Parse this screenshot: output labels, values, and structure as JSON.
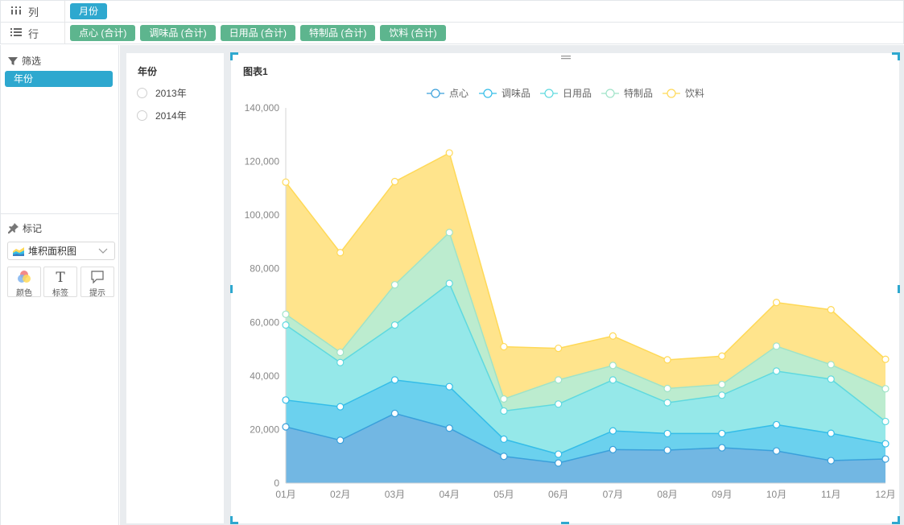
{
  "shelves": {
    "columns": {
      "label": "列",
      "pills": [
        "月份"
      ]
    },
    "rows": {
      "label": "行",
      "pills": [
        "点心 (合计)",
        "调味品 (合计)",
        "日用品 (合计)",
        "特制品 (合计)",
        "饮料 (合计)"
      ]
    }
  },
  "filter": {
    "title": "筛选",
    "pill": "年份"
  },
  "marks": {
    "title": "标记",
    "chart_type": "堆积面积图",
    "buttons": {
      "color": "颜色",
      "label": "标签",
      "tooltip": "提示"
    }
  },
  "year_filter": {
    "title": "年份",
    "options": [
      "2013年",
      "2014年"
    ]
  },
  "chart": {
    "title": "图表1"
  },
  "colors": {
    "accent": "#2ea8cf",
    "pill_green": "#5db58e"
  },
  "chart_data": {
    "type": "area",
    "stacked": true,
    "categories": [
      "01月",
      "02月",
      "03月",
      "04月",
      "05月",
      "06月",
      "07月",
      "08月",
      "09月",
      "10月",
      "11月",
      "12月"
    ],
    "ylim": [
      0,
      140000
    ],
    "yticks": [
      "0",
      "20,000",
      "40,000",
      "60,000",
      "80,000",
      "100,000",
      "120,000",
      "140,000"
    ],
    "ytick_values": [
      0,
      20000,
      40000,
      60000,
      80000,
      100000,
      120000,
      140000
    ],
    "legend_position": "top-center",
    "grid": false,
    "series": [
      {
        "name": "点心",
        "color": "#3aa0db",
        "fill": "#72b7e3",
        "values": [
          21000,
          16000,
          26000,
          20500,
          10000,
          7500,
          12500,
          12300,
          13200,
          12000,
          8400,
          9000
        ]
      },
      {
        "name": "调味品",
        "color": "#34bde8",
        "fill": "#6bd1ee",
        "values": [
          10000,
          12500,
          12500,
          15500,
          6400,
          3300,
          7000,
          6200,
          5300,
          9800,
          10200,
          5700
        ]
      },
      {
        "name": "日用品",
        "color": "#5fd9df",
        "fill": "#95e8e9",
        "values": [
          28000,
          16500,
          20500,
          38500,
          10500,
          18700,
          19000,
          11500,
          14300,
          20000,
          20200,
          8300
        ]
      },
      {
        "name": "特制品",
        "color": "#9fe3c8",
        "fill": "#bceccf",
        "values": [
          4000,
          3800,
          15000,
          19000,
          4500,
          9000,
          5400,
          5300,
          4000,
          9300,
          5400,
          12200
        ]
      },
      {
        "name": "饮料",
        "color": "#ffd957",
        "fill": "#ffe48c",
        "values": [
          49300,
          37200,
          38500,
          29700,
          19500,
          11800,
          11000,
          10700,
          10600,
          16300,
          20500,
          11000
        ]
      }
    ]
  }
}
